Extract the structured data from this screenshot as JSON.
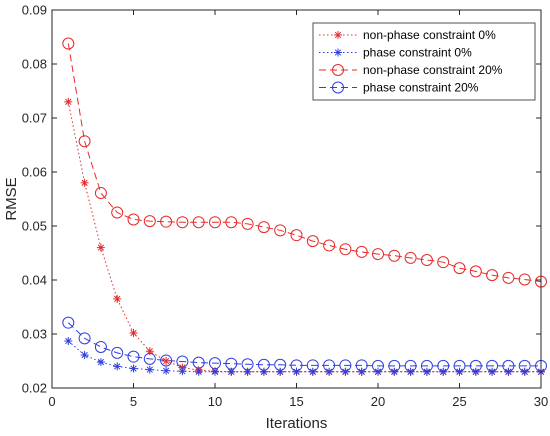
{
  "chart_data": {
    "type": "line",
    "title": "",
    "xlabel": "Iterations",
    "ylabel": "RMSE",
    "xlim": [
      0,
      30
    ],
    "ylim": [
      0.02,
      0.09
    ],
    "xticks": [
      0,
      5,
      10,
      15,
      20,
      25,
      30
    ],
    "yticks": [
      0.02,
      0.03,
      0.04,
      0.05,
      0.06,
      0.07,
      0.08,
      0.09
    ],
    "xtick_labels": [
      "0",
      "5",
      "10",
      "15",
      "20",
      "25",
      "30"
    ],
    "ytick_labels": [
      "0.02",
      "0.03",
      "0.04",
      "0.05",
      "0.06",
      "0.07",
      "0.08",
      "0.09"
    ],
    "grid": false,
    "legend_position": "top-right",
    "x": [
      1,
      2,
      3,
      4,
      5,
      6,
      7,
      8,
      9,
      10,
      11,
      12,
      13,
      14,
      15,
      16,
      17,
      18,
      19,
      20,
      21,
      22,
      23,
      24,
      25,
      26,
      27,
      28,
      29,
      30
    ],
    "series": [
      {
        "name": "non-phase constraint 0%",
        "color": "#e8292a",
        "line_style": "dotted",
        "marker": "asterisk",
        "values": [
          0.073,
          0.058,
          0.046,
          0.0365,
          0.0302,
          0.0268,
          0.025,
          0.0238,
          0.0233,
          0.0231,
          0.023,
          0.023,
          0.023,
          0.023,
          0.023,
          0.023,
          0.023,
          0.023,
          0.023,
          0.023,
          0.023,
          0.023,
          0.023,
          0.023,
          0.023,
          0.023,
          0.023,
          0.023,
          0.023,
          0.023
        ]
      },
      {
        "name": "phase constraint 0%",
        "color": "#2e3fe0",
        "line_style": "dotted",
        "marker": "asterisk",
        "values": [
          0.0287,
          0.0261,
          0.0248,
          0.024,
          0.0236,
          0.0234,
          0.0232,
          0.0231,
          0.023,
          0.023,
          0.023,
          0.023,
          0.023,
          0.023,
          0.023,
          0.023,
          0.023,
          0.023,
          0.023,
          0.023,
          0.023,
          0.023,
          0.023,
          0.023,
          0.023,
          0.023,
          0.023,
          0.023,
          0.023,
          0.023
        ]
      },
      {
        "name": "non-phase constraint 20%",
        "color": "#e8292a",
        "line_style": "dashed",
        "marker": "circle",
        "values": [
          0.0838,
          0.0657,
          0.0561,
          0.0525,
          0.0512,
          0.0509,
          0.0508,
          0.0507,
          0.0507,
          0.0507,
          0.0507,
          0.0504,
          0.0498,
          0.0492,
          0.0483,
          0.0472,
          0.0464,
          0.0457,
          0.0452,
          0.0448,
          0.0445,
          0.0441,
          0.0437,
          0.0433,
          0.0422,
          0.0416,
          0.0409,
          0.0404,
          0.0401,
          0.0397
        ]
      },
      {
        "name": "phase constraint 20%",
        "color": "#2e3fe0",
        "line_style": "dashed",
        "marker": "circle",
        "values": [
          0.0321,
          0.0292,
          0.0276,
          0.0265,
          0.0258,
          0.0254,
          0.0251,
          0.0249,
          0.0247,
          0.0246,
          0.0245,
          0.0244,
          0.0243,
          0.0243,
          0.0242,
          0.0242,
          0.0242,
          0.0242,
          0.0242,
          0.0241,
          0.0241,
          0.0241,
          0.0241,
          0.0241,
          0.0241,
          0.0241,
          0.0241,
          0.0241,
          0.0241,
          0.0241
        ]
      }
    ]
  }
}
